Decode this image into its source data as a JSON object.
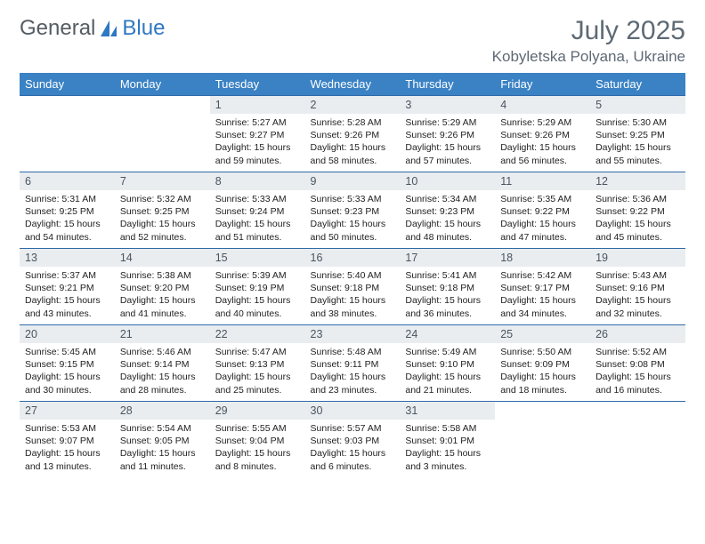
{
  "brand": {
    "part1": "General",
    "part2": "Blue"
  },
  "title": "July 2025",
  "location": "Kobyletska Polyana, Ukraine",
  "colors": {
    "header_bg": "#3a82c4",
    "header_text": "#ffffff",
    "daynum_bg": "#e9edf0",
    "week_border": "#2f6aa8",
    "title_color": "#5e6a75"
  },
  "day_headers": [
    "Sunday",
    "Monday",
    "Tuesday",
    "Wednesday",
    "Thursday",
    "Friday",
    "Saturday"
  ],
  "weeks": [
    [
      null,
      null,
      {
        "n": "1",
        "sr": "5:27 AM",
        "ss": "9:27 PM",
        "dl": "15 hours and 59 minutes."
      },
      {
        "n": "2",
        "sr": "5:28 AM",
        "ss": "9:26 PM",
        "dl": "15 hours and 58 minutes."
      },
      {
        "n": "3",
        "sr": "5:29 AM",
        "ss": "9:26 PM",
        "dl": "15 hours and 57 minutes."
      },
      {
        "n": "4",
        "sr": "5:29 AM",
        "ss": "9:26 PM",
        "dl": "15 hours and 56 minutes."
      },
      {
        "n": "5",
        "sr": "5:30 AM",
        "ss": "9:25 PM",
        "dl": "15 hours and 55 minutes."
      }
    ],
    [
      {
        "n": "6",
        "sr": "5:31 AM",
        "ss": "9:25 PM",
        "dl": "15 hours and 54 minutes."
      },
      {
        "n": "7",
        "sr": "5:32 AM",
        "ss": "9:25 PM",
        "dl": "15 hours and 52 minutes."
      },
      {
        "n": "8",
        "sr": "5:33 AM",
        "ss": "9:24 PM",
        "dl": "15 hours and 51 minutes."
      },
      {
        "n": "9",
        "sr": "5:33 AM",
        "ss": "9:23 PM",
        "dl": "15 hours and 50 minutes."
      },
      {
        "n": "10",
        "sr": "5:34 AM",
        "ss": "9:23 PM",
        "dl": "15 hours and 48 minutes."
      },
      {
        "n": "11",
        "sr": "5:35 AM",
        "ss": "9:22 PM",
        "dl": "15 hours and 47 minutes."
      },
      {
        "n": "12",
        "sr": "5:36 AM",
        "ss": "9:22 PM",
        "dl": "15 hours and 45 minutes."
      }
    ],
    [
      {
        "n": "13",
        "sr": "5:37 AM",
        "ss": "9:21 PM",
        "dl": "15 hours and 43 minutes."
      },
      {
        "n": "14",
        "sr": "5:38 AM",
        "ss": "9:20 PM",
        "dl": "15 hours and 41 minutes."
      },
      {
        "n": "15",
        "sr": "5:39 AM",
        "ss": "9:19 PM",
        "dl": "15 hours and 40 minutes."
      },
      {
        "n": "16",
        "sr": "5:40 AM",
        "ss": "9:18 PM",
        "dl": "15 hours and 38 minutes."
      },
      {
        "n": "17",
        "sr": "5:41 AM",
        "ss": "9:18 PM",
        "dl": "15 hours and 36 minutes."
      },
      {
        "n": "18",
        "sr": "5:42 AM",
        "ss": "9:17 PM",
        "dl": "15 hours and 34 minutes."
      },
      {
        "n": "19",
        "sr": "5:43 AM",
        "ss": "9:16 PM",
        "dl": "15 hours and 32 minutes."
      }
    ],
    [
      {
        "n": "20",
        "sr": "5:45 AM",
        "ss": "9:15 PM",
        "dl": "15 hours and 30 minutes."
      },
      {
        "n": "21",
        "sr": "5:46 AM",
        "ss": "9:14 PM",
        "dl": "15 hours and 28 minutes."
      },
      {
        "n": "22",
        "sr": "5:47 AM",
        "ss": "9:13 PM",
        "dl": "15 hours and 25 minutes."
      },
      {
        "n": "23",
        "sr": "5:48 AM",
        "ss": "9:11 PM",
        "dl": "15 hours and 23 minutes."
      },
      {
        "n": "24",
        "sr": "5:49 AM",
        "ss": "9:10 PM",
        "dl": "15 hours and 21 minutes."
      },
      {
        "n": "25",
        "sr": "5:50 AM",
        "ss": "9:09 PM",
        "dl": "15 hours and 18 minutes."
      },
      {
        "n": "26",
        "sr": "5:52 AM",
        "ss": "9:08 PM",
        "dl": "15 hours and 16 minutes."
      }
    ],
    [
      {
        "n": "27",
        "sr": "5:53 AM",
        "ss": "9:07 PM",
        "dl": "15 hours and 13 minutes."
      },
      {
        "n": "28",
        "sr": "5:54 AM",
        "ss": "9:05 PM",
        "dl": "15 hours and 11 minutes."
      },
      {
        "n": "29",
        "sr": "5:55 AM",
        "ss": "9:04 PM",
        "dl": "15 hours and 8 minutes."
      },
      {
        "n": "30",
        "sr": "5:57 AM",
        "ss": "9:03 PM",
        "dl": "15 hours and 6 minutes."
      },
      {
        "n": "31",
        "sr": "5:58 AM",
        "ss": "9:01 PM",
        "dl": "15 hours and 3 minutes."
      },
      null,
      null
    ]
  ],
  "labels": {
    "sunrise": "Sunrise:",
    "sunset": "Sunset:",
    "daylight": "Daylight:"
  }
}
